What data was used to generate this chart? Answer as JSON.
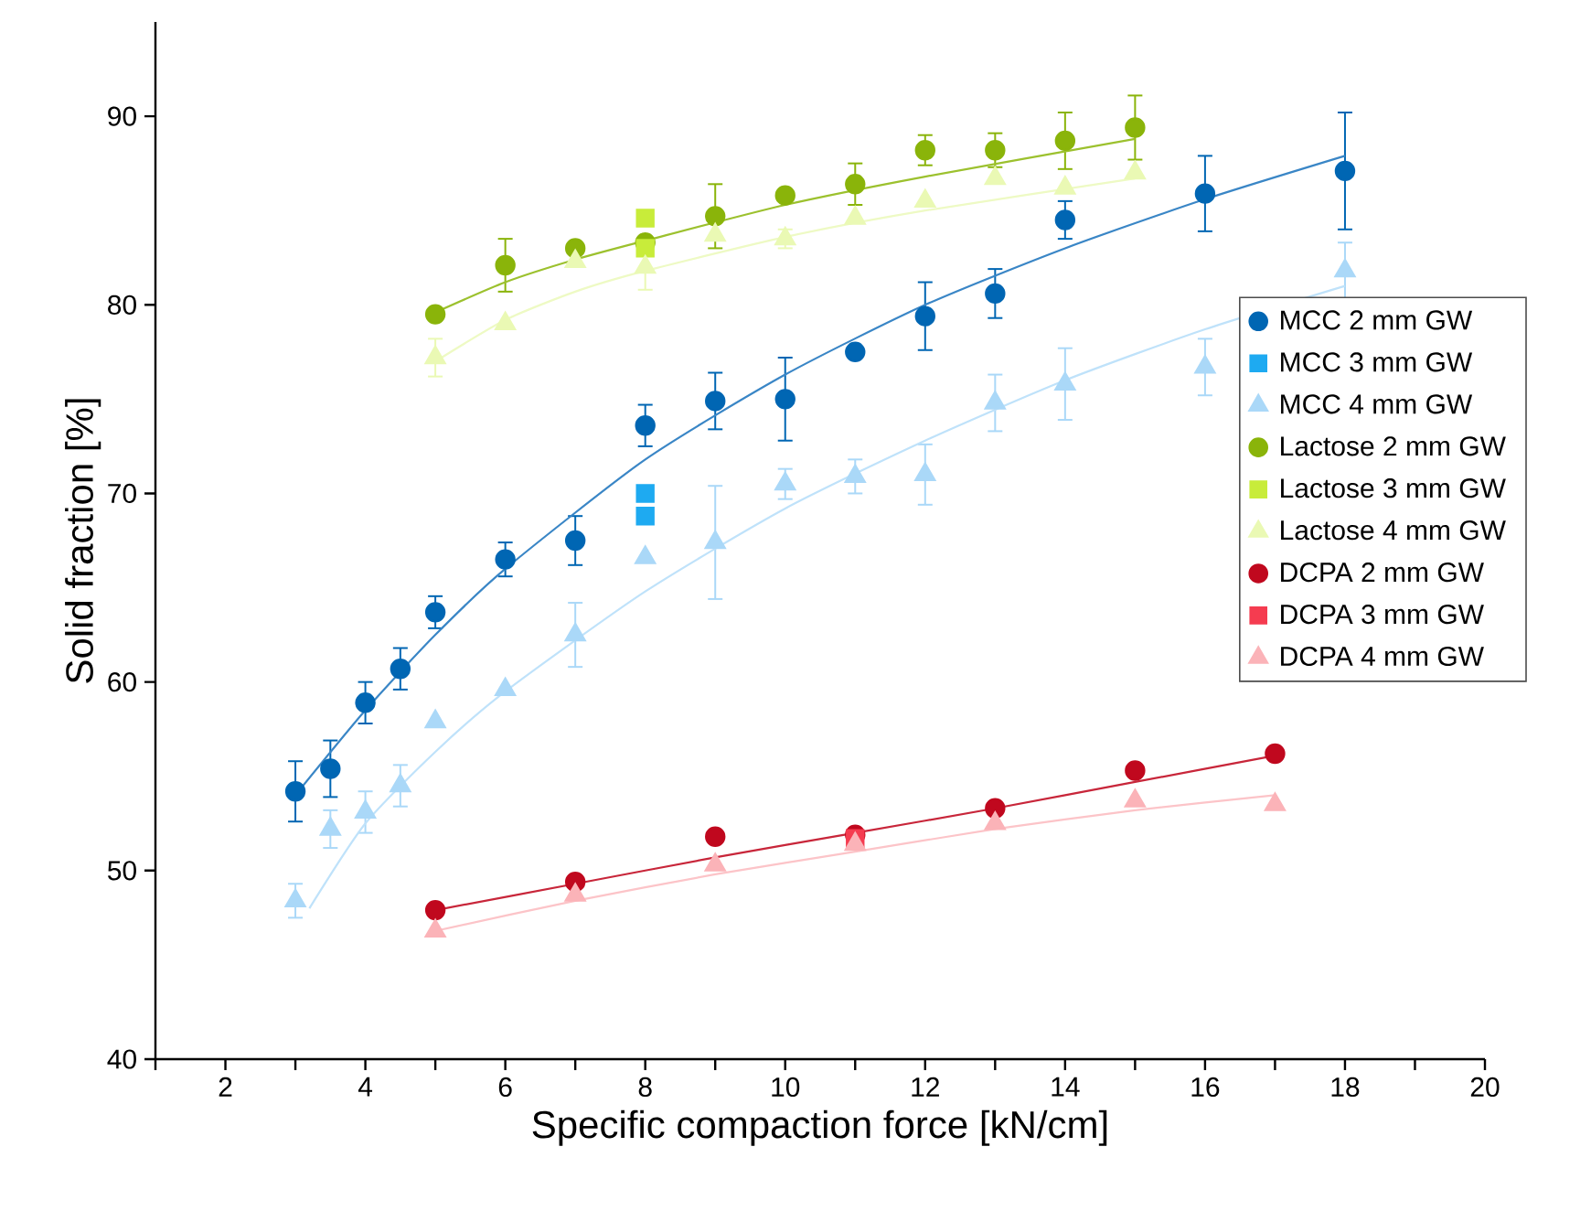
{
  "chart_data": {
    "type": "scatter",
    "xlabel": "Specific compaction force [kN/cm]",
    "ylabel": "Solid fraction [%]",
    "xlim": [
      1,
      20
    ],
    "ylim": [
      40,
      95
    ],
    "xticks": [
      {
        "value": 1,
        "label": null
      },
      2,
      {
        "value": 3,
        "label": null
      },
      4,
      {
        "value": 5,
        "label": null
      },
      6,
      {
        "value": 7,
        "label": null
      },
      8,
      {
        "value": 9,
        "label": null
      },
      10,
      {
        "value": 11,
        "label": null
      },
      12,
      {
        "value": 13,
        "label": null
      },
      14,
      {
        "value": 15,
        "label": null
      },
      16,
      {
        "value": 17,
        "label": null
      },
      18,
      {
        "value": 19,
        "label": null
      },
      20
    ],
    "yticks": [
      40,
      50,
      60,
      70,
      80,
      90
    ],
    "legend": "right",
    "series": [
      {
        "name": "MCC 2 mm GW",
        "color": "#0066b3",
        "marker": "circle",
        "x": [
          3,
          3.5,
          4,
          4.5,
          5,
          6,
          7,
          8,
          9,
          10,
          11,
          12,
          13,
          14,
          16,
          18
        ],
        "values": [
          54.2,
          55.4,
          58.9,
          60.7,
          63.7,
          66.5,
          67.5,
          73.6,
          74.9,
          75.0,
          77.5,
          79.4,
          80.6,
          84.5,
          85.9,
          87.1
        ],
        "errors": [
          1.6,
          1.5,
          1.1,
          1.1,
          0.85,
          0.9,
          1.3,
          1.1,
          1.5,
          2.2,
          null,
          1.8,
          1.3,
          1.0,
          2.0,
          3.1
        ]
      },
      {
        "name": "MCC 3 mm GW",
        "color": "#1eaaf1",
        "marker": "square",
        "x": [
          8,
          8
        ],
        "values": [
          70.0,
          68.8
        ]
      },
      {
        "name": "MCC 4 mm GW",
        "color": "#aad8f8",
        "marker": "triangle",
        "x": [
          3,
          3.5,
          4,
          4.5,
          5,
          6,
          7,
          8,
          9,
          10,
          11,
          12,
          13,
          14,
          16,
          18
        ],
        "values": [
          48.4,
          52.2,
          53.1,
          54.5,
          57.9,
          59.6,
          62.5,
          66.6,
          67.4,
          70.5,
          70.9,
          71.0,
          74.8,
          75.8,
          76.7,
          81.8
        ],
        "errors": [
          0.9,
          1.0,
          1.1,
          1.1,
          null,
          null,
          1.7,
          null,
          3.0,
          0.8,
          0.9,
          1.6,
          1.5,
          1.9,
          1.5,
          1.5
        ]
      },
      {
        "name": "Lactose 2 mm GW",
        "color": "#8ab40a",
        "marker": "circle",
        "x": [
          5,
          6,
          7,
          8,
          9,
          10,
          11,
          12,
          13,
          14,
          15
        ],
        "values": [
          79.5,
          82.1,
          83.0,
          83.3,
          84.7,
          85.8,
          86.4,
          88.2,
          88.2,
          88.7,
          89.4
        ],
        "errors": [
          null,
          1.4,
          null,
          null,
          1.7,
          null,
          1.1,
          0.8,
          0.9,
          1.5,
          1.7
        ]
      },
      {
        "name": "Lactose 3 mm GW",
        "color": "#c8ec3a",
        "marker": "square",
        "x": [
          8,
          8
        ],
        "values": [
          84.6,
          83.0
        ]
      },
      {
        "name": "Lactose 4 mm GW",
        "color": "#eaf9b4",
        "marker": "triangle",
        "x": [
          5,
          6,
          7,
          8,
          9,
          10,
          11,
          12,
          13,
          14,
          15
        ],
        "values": [
          77.2,
          79.0,
          82.3,
          82.0,
          83.7,
          83.5,
          84.6,
          85.5,
          86.7,
          86.2,
          87.0
        ],
        "errors": [
          1.0,
          null,
          null,
          1.2,
          null,
          0.5,
          null,
          null,
          null,
          null,
          null
        ]
      },
      {
        "name": "DCPA 2 mm GW",
        "color": "#c0081e",
        "marker": "circle",
        "x": [
          5,
          7,
          9,
          11,
          13,
          15,
          17
        ],
        "values": [
          47.9,
          49.4,
          51.8,
          51.9,
          53.3,
          55.3,
          56.2
        ]
      },
      {
        "name": "DCPA 3 mm GW",
        "color": "#f53c50",
        "marker": "square",
        "x": [
          11
        ],
        "values": [
          51.7
        ]
      },
      {
        "name": "DCPA 4 mm GW",
        "color": "#fbb3b8",
        "marker": "triangle",
        "x": [
          5,
          7,
          9,
          11,
          13,
          15,
          17
        ],
        "values": [
          46.8,
          48.7,
          50.3,
          51.4,
          52.5,
          53.7,
          53.5
        ]
      },
      {
        "type": "line",
        "color": "#3a86c6",
        "x": [
          3,
          4,
          5,
          6,
          8,
          10,
          12,
          14,
          16,
          18
        ],
        "values": [
          54.0,
          58.5,
          62.5,
          66.0,
          71.8,
          76.3,
          80.0,
          83.0,
          85.6,
          87.9
        ]
      },
      {
        "type": "line",
        "color": "#bfe2fa",
        "x": [
          3.2,
          4,
          5,
          6,
          8,
          10,
          12,
          14,
          16,
          18
        ],
        "values": [
          48.0,
          52.5,
          56.3,
          59.5,
          64.8,
          69.2,
          72.8,
          76.0,
          78.7,
          81.0
        ]
      },
      {
        "type": "line",
        "color": "#9cc12e",
        "x": [
          5,
          6,
          7,
          8,
          10,
          12,
          15
        ],
        "values": [
          79.6,
          81.2,
          82.4,
          83.4,
          85.3,
          86.8,
          88.8
        ]
      },
      {
        "type": "line",
        "color": "#eefac4",
        "x": [
          5,
          6,
          7,
          8,
          10,
          12,
          15
        ],
        "values": [
          77.0,
          79.2,
          80.7,
          81.8,
          83.6,
          85.0,
          86.7
        ]
      },
      {
        "type": "line",
        "color": "#c8263a",
        "x": [
          5,
          7,
          9,
          11,
          13,
          15,
          17
        ],
        "values": [
          47.9,
          49.3,
          50.7,
          52.0,
          53.3,
          54.7,
          56.1
        ]
      },
      {
        "type": "line",
        "color": "#fcc4c8",
        "x": [
          5,
          7,
          9,
          11,
          13,
          15,
          17
        ],
        "values": [
          46.8,
          48.4,
          49.8,
          51.0,
          52.2,
          53.2,
          54.0
        ]
      }
    ]
  }
}
